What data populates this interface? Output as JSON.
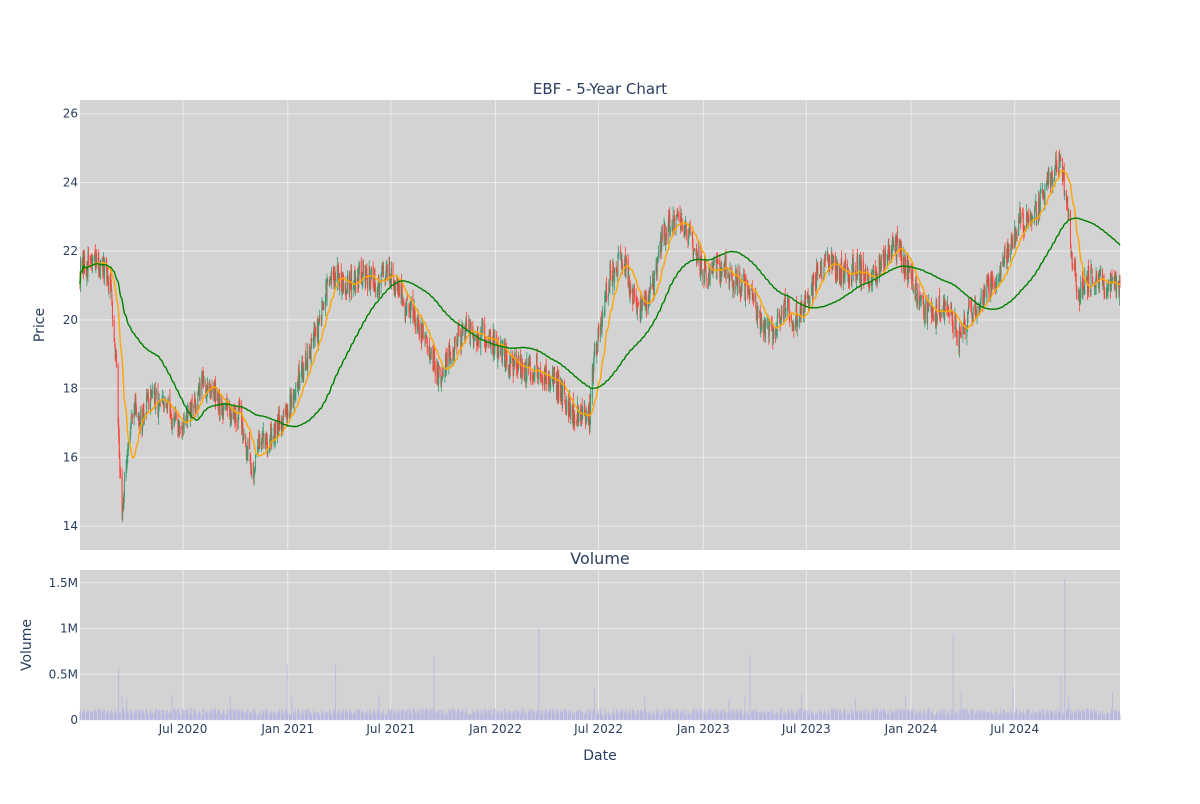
{
  "chart_data": [
    {
      "type": "candlestick",
      "title": "EBF - 5-Year Chart",
      "ylabel": "Price",
      "ylim": [
        13.3,
        26.4
      ],
      "xlim": [
        "2020-01-02",
        "2025-01-02"
      ],
      "yticks": [
        14,
        16,
        18,
        20,
        22,
        24,
        26
      ],
      "grid": true,
      "colors": {
        "background": "#d3d3d3",
        "grid": "#ebebeb",
        "up": "#3d9970",
        "down": "#ff4136",
        "ma_short": "#ffa500",
        "ma_long": "#008000"
      },
      "price_keypoints": [
        [
          "2020-01-02",
          21.4
        ],
        [
          "2020-01-20",
          21.7
        ],
        [
          "2020-02-10",
          21.5
        ],
        [
          "2020-02-25",
          21.0
        ],
        [
          "2020-03-05",
          19.0
        ],
        [
          "2020-03-12",
          15.8
        ],
        [
          "2020-03-16",
          14.6
        ],
        [
          "2020-03-23",
          15.5
        ],
        [
          "2020-04-05",
          17.6
        ],
        [
          "2020-04-20",
          17.0
        ],
        [
          "2020-05-05",
          17.8
        ],
        [
          "2020-05-20",
          17.5
        ],
        [
          "2020-06-05",
          17.4
        ],
        [
          "2020-06-20",
          16.8
        ],
        [
          "2020-07-05",
          17.0
        ],
        [
          "2020-07-20",
          17.4
        ],
        [
          "2020-08-05",
          18.2
        ],
        [
          "2020-08-20",
          18.0
        ],
        [
          "2020-09-05",
          17.5
        ],
        [
          "2020-09-25",
          17.3
        ],
        [
          "2020-10-10",
          17.2
        ],
        [
          "2020-10-25",
          16.0
        ],
        [
          "2020-11-02",
          15.6
        ],
        [
          "2020-11-10",
          16.4
        ],
        [
          "2020-12-01",
          16.6
        ],
        [
          "2020-12-20",
          17.1
        ],
        [
          "2021-01-05",
          17.5
        ],
        [
          "2021-01-20",
          18.3
        ],
        [
          "2021-02-05",
          19.0
        ],
        [
          "2021-02-25",
          19.8
        ],
        [
          "2021-03-10",
          20.9
        ],
        [
          "2021-03-25",
          21.3
        ],
        [
          "2021-04-15",
          21.0
        ],
        [
          "2021-05-05",
          21.4
        ],
        [
          "2021-05-25",
          21.2
        ],
        [
          "2021-06-10",
          21.0
        ],
        [
          "2021-06-25",
          21.5
        ],
        [
          "2021-07-10",
          21.0
        ],
        [
          "2021-07-25",
          20.4
        ],
        [
          "2021-08-10",
          20.2
        ],
        [
          "2021-08-25",
          19.6
        ],
        [
          "2021-09-10",
          19.0
        ],
        [
          "2021-09-25",
          18.4
        ],
        [
          "2021-10-10",
          18.9
        ],
        [
          "2021-10-25",
          19.3
        ],
        [
          "2021-11-10",
          19.8
        ],
        [
          "2021-11-25",
          19.4
        ],
        [
          "2021-12-10",
          19.6
        ],
        [
          "2021-12-25",
          19.4
        ],
        [
          "2022-01-10",
          19.1
        ],
        [
          "2022-01-25",
          18.8
        ],
        [
          "2022-02-10",
          18.7
        ],
        [
          "2022-02-25",
          18.5
        ],
        [
          "2022-03-15",
          18.6
        ],
        [
          "2022-04-01",
          18.3
        ],
        [
          "2022-04-20",
          18.1
        ],
        [
          "2022-05-05",
          17.6
        ],
        [
          "2022-05-20",
          17.3
        ],
        [
          "2022-06-05",
          17.4
        ],
        [
          "2022-06-15",
          17.1
        ],
        [
          "2022-06-22",
          18.8
        ],
        [
          "2022-07-05",
          20.0
        ],
        [
          "2022-07-20",
          21.2
        ],
        [
          "2022-08-05",
          21.8
        ],
        [
          "2022-08-20",
          21.3
        ],
        [
          "2022-09-05",
          20.5
        ],
        [
          "2022-09-20",
          20.3
        ],
        [
          "2022-10-05",
          21.0
        ],
        [
          "2022-10-20",
          22.4
        ],
        [
          "2022-11-05",
          22.8
        ],
        [
          "2022-11-20",
          23.0
        ],
        [
          "2022-12-05",
          22.6
        ],
        [
          "2022-12-20",
          21.8
        ],
        [
          "2023-01-05",
          21.3
        ],
        [
          "2023-01-20",
          21.4
        ],
        [
          "2023-02-05",
          21.6
        ],
        [
          "2023-02-20",
          21.2
        ],
        [
          "2023-03-10",
          21.1
        ],
        [
          "2023-03-25",
          20.6
        ],
        [
          "2023-04-10",
          20.1
        ],
        [
          "2023-04-25",
          19.6
        ],
        [
          "2023-05-10",
          19.8
        ],
        [
          "2023-05-25",
          20.5
        ],
        [
          "2023-06-10",
          20.0
        ],
        [
          "2023-06-25",
          20.3
        ],
        [
          "2023-07-10",
          20.9
        ],
        [
          "2023-07-25",
          21.5
        ],
        [
          "2023-08-10",
          21.7
        ],
        [
          "2023-08-25",
          21.3
        ],
        [
          "2023-09-10",
          21.4
        ],
        [
          "2023-09-25",
          21.5
        ],
        [
          "2023-10-10",
          21.3
        ],
        [
          "2023-10-25",
          21.2
        ],
        [
          "2023-11-10",
          21.6
        ],
        [
          "2023-11-25",
          22.2
        ],
        [
          "2023-12-10",
          22.0
        ],
        [
          "2023-12-25",
          21.5
        ],
        [
          "2024-01-10",
          20.8
        ],
        [
          "2024-01-25",
          20.3
        ],
        [
          "2024-02-10",
          20.1
        ],
        [
          "2024-02-25",
          20.4
        ],
        [
          "2024-03-10",
          20.2
        ],
        [
          "2024-03-25",
          19.5
        ],
        [
          "2024-04-10",
          20.1
        ],
        [
          "2024-04-25",
          20.4
        ],
        [
          "2024-05-10",
          20.7
        ],
        [
          "2024-05-25",
          21.1
        ],
        [
          "2024-06-10",
          21.6
        ],
        [
          "2024-06-25",
          22.3
        ],
        [
          "2024-07-10",
          22.9
        ],
        [
          "2024-07-25",
          22.8
        ],
        [
          "2024-08-10",
          23.2
        ],
        [
          "2024-08-25",
          23.8
        ],
        [
          "2024-09-10",
          24.6
        ],
        [
          "2024-09-20",
          24.4
        ],
        [
          "2024-10-01",
          23.6
        ],
        [
          "2024-10-10",
          21.8
        ],
        [
          "2024-10-20",
          20.7
        ],
        [
          "2024-11-05",
          21.1
        ],
        [
          "2024-11-20",
          21.3
        ],
        [
          "2024-12-05",
          21.0
        ],
        [
          "2024-12-20",
          21.1
        ],
        [
          "2025-01-02",
          21.0
        ]
      ]
    },
    {
      "type": "bar",
      "title": "Volume",
      "xlabel": "Date",
      "ylabel": "Volume",
      "ylim": [
        0,
        1640000
      ],
      "yticks": [
        0,
        500000,
        1000000,
        1500000
      ],
      "ytick_labels": [
        "0",
        "0.5M",
        "1M",
        "1.5M"
      ],
      "xticks": [
        "2020-07-01",
        "2021-01-01",
        "2021-07-01",
        "2022-01-01",
        "2022-07-01",
        "2023-01-01",
        "2023-07-01",
        "2024-01-01",
        "2024-07-01"
      ],
      "xtick_labels": [
        "Jul 2020",
        "Jan 2021",
        "Jul 2021",
        "Jan 2022",
        "Jul 2022",
        "Jan 2023",
        "Jul 2023",
        "Jan 2024",
        "Jul 2024"
      ],
      "grid": true,
      "colors": {
        "background": "#d3d3d3",
        "grid": "#ebebeb",
        "bar": "#b8b8e0"
      },
      "baseline_volume": 90000,
      "volume_spikes": [
        [
          "2020-03-10",
          560000
        ],
        [
          "2020-03-16",
          260000
        ],
        [
          "2020-03-24",
          240000
        ],
        [
          "2020-06-12",
          270000
        ],
        [
          "2020-09-22",
          250000
        ],
        [
          "2020-12-31",
          610000
        ],
        [
          "2021-01-08",
          250000
        ],
        [
          "2021-03-26",
          600000
        ],
        [
          "2021-06-10",
          270000
        ],
        [
          "2021-09-15",
          700000
        ],
        [
          "2022-03-18",
          1010000
        ],
        [
          "2022-06-24",
          330000
        ],
        [
          "2022-09-20",
          250000
        ],
        [
          "2023-02-15",
          230000
        ],
        [
          "2023-03-15",
          270000
        ],
        [
          "2023-03-24",
          700000
        ],
        [
          "2023-06-23",
          290000
        ],
        [
          "2023-09-25",
          230000
        ],
        [
          "2023-12-22",
          250000
        ],
        [
          "2024-03-15",
          930000
        ],
        [
          "2024-03-29",
          300000
        ],
        [
          "2024-06-28",
          330000
        ],
        [
          "2024-09-20",
          480000
        ],
        [
          "2024-09-27",
          1540000
        ],
        [
          "2024-10-04",
          270000
        ],
        [
          "2024-12-20",
          310000
        ]
      ]
    }
  ]
}
